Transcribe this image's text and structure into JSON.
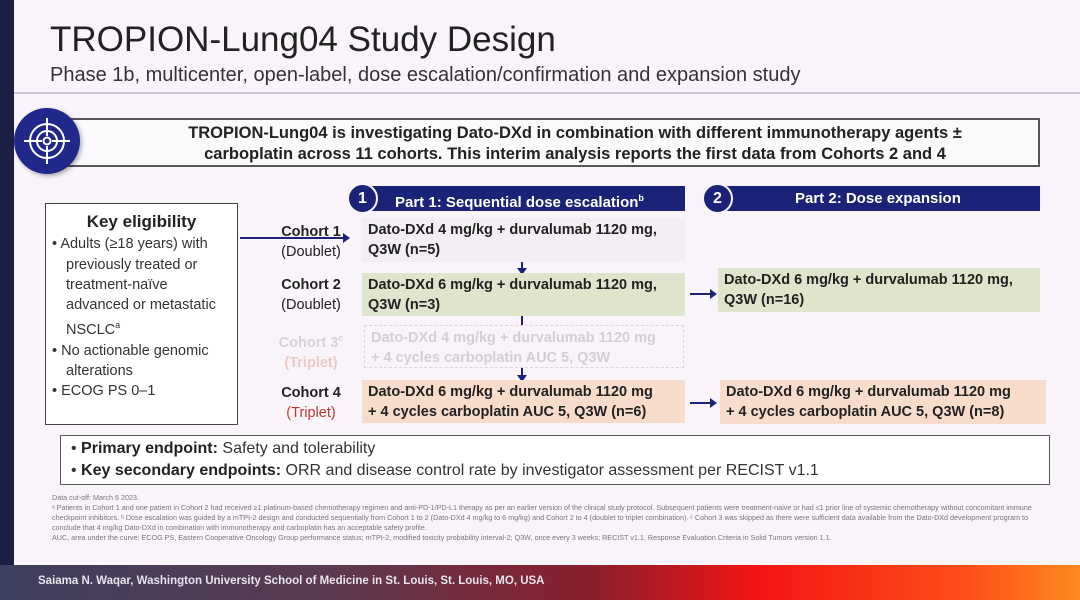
{
  "title": "TROPION-Lung04 Study Design",
  "subtitle": "Phase 1b, multicenter, open-label, dose escalation/confirmation and expansion study",
  "banner": {
    "icon": "target-icon",
    "line1": "TROPION-Lung04 is investigating Dato-DXd in combination with different immunotherapy agents ±",
    "line2": "carboplatin across 11 cohorts. This interim analysis reports the first data from Cohorts 2 and 4"
  },
  "part1": {
    "number": "1",
    "label": "Part 1: Sequential dose escalation",
    "sup": "b"
  },
  "part2": {
    "number": "2",
    "label": "Part 2: Dose expansion"
  },
  "eligibility": {
    "heading": "Key eligibility",
    "items": [
      "Adults (≥18 years) with previously treated or treatment-naïve advanced or metastatic NSCLC",
      "No actionable genomic alterations",
      "ECOG PS 0–1"
    ],
    "sup": "a"
  },
  "cohorts": [
    {
      "name": "Cohort 1",
      "type": "(Doublet)",
      "line1": "Dato-DXd 4 mg/kg + durvalumab 1120 mg,",
      "line2": "Q3W (n=5)"
    },
    {
      "name": "Cohort 2",
      "type": "(Doublet)",
      "line1": "Dato-DXd 6 mg/kg + durvalumab 1120 mg,",
      "line2": "Q3W (n=3)"
    },
    {
      "name": "Cohort 3",
      "sup": "c",
      "type": "(Triplet)",
      "line1": "Dato-DXd 4 mg/kg + durvalumab 1120 mg",
      "line2": "+ 4 cycles carboplatin AUC 5, Q3W"
    },
    {
      "name": "Cohort 4",
      "type": "(Triplet)",
      "line1": "Dato-DXd 6 mg/kg + durvalumab 1120 mg",
      "line2": "+ 4 cycles carboplatin AUC 5, Q3W (n=6)"
    }
  ],
  "expansion": [
    {
      "line1": "Dato-DXd 6 mg/kg + durvalumab 1120 mg,",
      "line2": "Q3W (n=16)"
    },
    {
      "line1": "Dato-DXd 6 mg/kg + durvalumab 1120 mg",
      "line2": "+ 4 cycles carboplatin AUC 5, Q3W (n=8)"
    }
  ],
  "endpoints": {
    "primary_label": "Primary endpoint:",
    "primary": " Safety and tolerability",
    "secondary_label": "Key secondary endpoints:",
    "secondary": " ORR and disease control rate by investigator assessment per RECIST v1.1"
  },
  "footnotes": [
    "Data cut-off: March 6 2023.",
    "ᵃ Patients in Cohort 1 and one patient in Cohort 2 had received ≥1 platinum-based chemotherapy regimen and anti-PD-1/PD-L1 therapy as per an earlier version of the clinical study protocol. Subsequent patients were treatment-naive or had ≤1 prior line of systemic chemotherapy without concomitant immune checkpoint inhibitors. ᵇ Dose escalation was guided by a mTPI-2 design and conducted sequentially from Cohort 1 to 2 (Dato-DXd 4 mg/kg to 6 mg/kg) and Cohort 2 to 4 (doublet to triplet combination). ᶜ Cohort 3 was skipped as there were sufficient data available from the Dato-DXd development program to conclude that 4 mg/kg Dato-DXd in combination with immunotherapy and carboplatin has an acceptable safety profile.",
    "AUC, area under the curve; ECOG PS, Eastern Cooperative Oncology Group performance status; mTPI-2, modified toxicity probability interval-2; Q3W, once every 3 weeks; RECIST v1.1, Response Evaluation Criteria in Solid Tumors version 1.1."
  ],
  "speaker": "Saiama N. Waqar, Washington University School of Medicine in St. Louis, St. Louis, MO, USA",
  "colors": {
    "navy": "#1a2378",
    "doublet_fill": "#dfe5cc",
    "triplet_fill": "#f7dccb",
    "triplet_label": "#c0392b"
  }
}
